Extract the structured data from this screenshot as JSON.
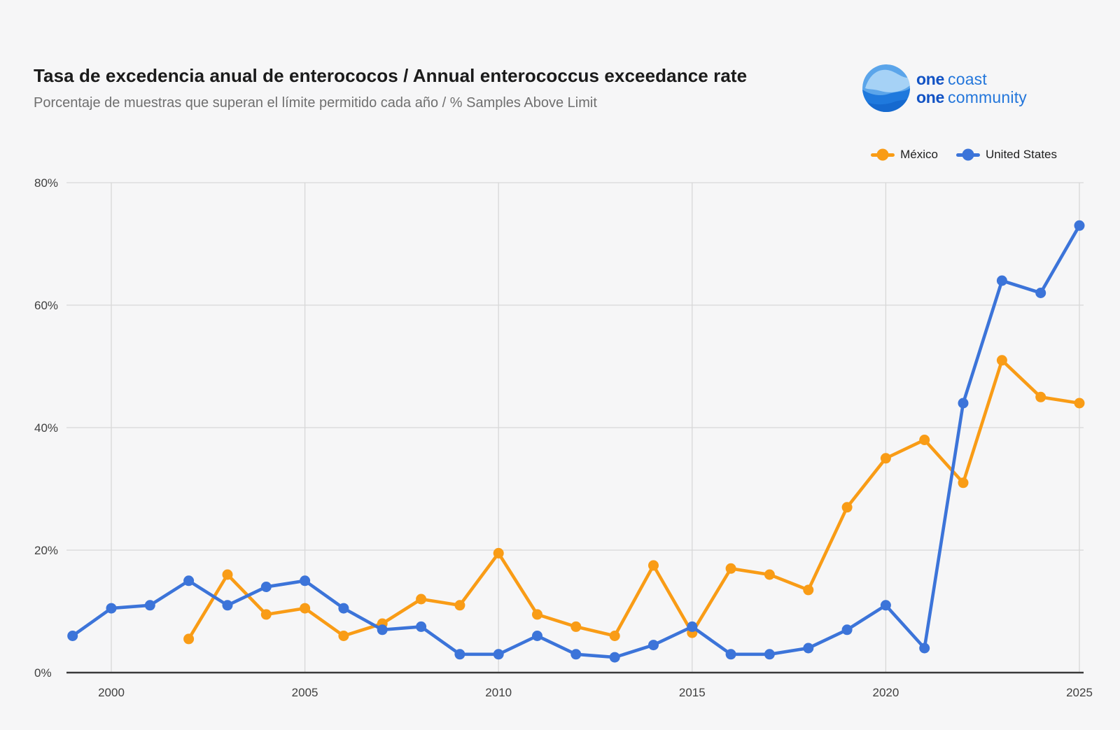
{
  "header": {
    "title": "Tasa de excedencia anual de enterococos / Annual enterococcus exceedance rate",
    "subtitle": "Porcentaje de muestras que superan el límite permitido cada año / % Samples Above Limit"
  },
  "logo": {
    "line1_bold": "one",
    "line1_rest": "coast",
    "line2_bold": "one",
    "line2_rest": "community"
  },
  "legend": {
    "items": [
      {
        "label": "México",
        "color": "#f99c16"
      },
      {
        "label": "United States",
        "color": "#3c74d9"
      }
    ]
  },
  "colors": {
    "background": "#f6f6f7",
    "gridline": "#d8d8d8",
    "axis": "#3b3b3b",
    "tick_text": "#3f3f3f",
    "mexico_orange": "#f99c16",
    "us_blue": "#3c74d9"
  },
  "chart_data": {
    "type": "line",
    "title": "Tasa de excedencia anual de enterococos / Annual enterococcus exceedance rate",
    "subtitle": "Porcentaje de muestras que superan el límite permitido cada año / % Samples Above Limit",
    "xlabel": "",
    "ylabel": "",
    "x": [
      1999,
      2000,
      2001,
      2002,
      2003,
      2004,
      2005,
      2006,
      2007,
      2008,
      2009,
      2010,
      2011,
      2012,
      2013,
      2014,
      2015,
      2016,
      2017,
      2018,
      2019,
      2020,
      2021,
      2022,
      2023,
      2024,
      2025
    ],
    "series": [
      {
        "name": "México",
        "color": "#f99c16",
        "values": [
          null,
          null,
          null,
          5.5,
          16,
          9.5,
          10.5,
          6,
          8,
          12,
          11,
          19.5,
          9.5,
          7.5,
          6,
          17.5,
          6.5,
          17,
          16,
          13.5,
          27,
          35,
          38,
          31,
          51,
          45,
          44
        ]
      },
      {
        "name": "United States",
        "color": "#3c74d9",
        "values": [
          6,
          10.5,
          11,
          15,
          11,
          14,
          15,
          10.5,
          7,
          7.5,
          3,
          3,
          6,
          3,
          2.5,
          4.5,
          7.5,
          3,
          3,
          4,
          7,
          11,
          4,
          44,
          64,
          62,
          73
        ]
      }
    ],
    "x_ticks": [
      2000,
      2005,
      2010,
      2015,
      2020,
      2025
    ],
    "y_ticks": [
      0,
      20,
      40,
      60,
      80
    ],
    "y_tick_suffix": "%",
    "ylim": [
      0,
      80
    ],
    "xlim": [
      1998.85,
      2025.1
    ],
    "grid": true,
    "legend_position": "top-right"
  }
}
